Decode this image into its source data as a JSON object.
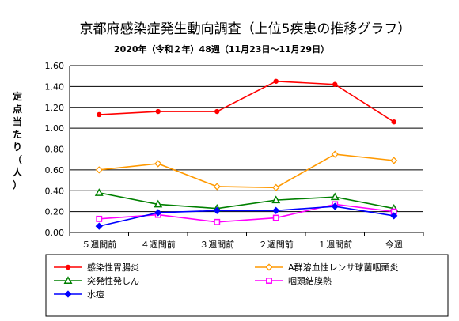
{
  "chart_data": {
    "type": "line",
    "title": "京都府感染症発生動向調査（上位5疾患の推移グラフ）",
    "subtitle": "2020年（令和２年）48週（11月23日〜11月29日）",
    "ylabel": "定点当たり（人）",
    "xlabel": "",
    "categories": [
      "５週間前",
      "４週間前",
      "３週間前",
      "２週間前",
      "１週間前",
      "今週"
    ],
    "ylim": [
      0,
      1.6
    ],
    "yticks": [
      "0.00",
      "0.20",
      "0.40",
      "0.60",
      "0.80",
      "1.00",
      "1.20",
      "1.40",
      "1.60"
    ],
    "grid": "horizontal",
    "legend_position": "bottom",
    "series": [
      {
        "name": "感染性胃腸炎",
        "color": "#ff0000",
        "marker": "circle",
        "values": [
          1.13,
          1.16,
          1.16,
          1.45,
          1.42,
          1.06
        ]
      },
      {
        "name": "A群溶血性レンサ球菌咽頭炎",
        "color": "#ff9900",
        "marker": "diamond",
        "values": [
          0.6,
          0.66,
          0.44,
          0.43,
          0.75,
          0.69
        ]
      },
      {
        "name": "突発性発しん",
        "color": "#008000",
        "marker": "triangle",
        "values": [
          0.38,
          0.27,
          0.23,
          0.31,
          0.34,
          0.23
        ]
      },
      {
        "name": "咽頭結膜熱",
        "color": "#ff00ff",
        "marker": "square",
        "values": [
          0.13,
          0.17,
          0.1,
          0.14,
          0.27,
          0.2
        ]
      },
      {
        "name": "水痘",
        "color": "#0000ff",
        "marker": "diamond",
        "values": [
          0.06,
          0.19,
          0.21,
          0.21,
          0.25,
          0.16
        ]
      }
    ]
  }
}
